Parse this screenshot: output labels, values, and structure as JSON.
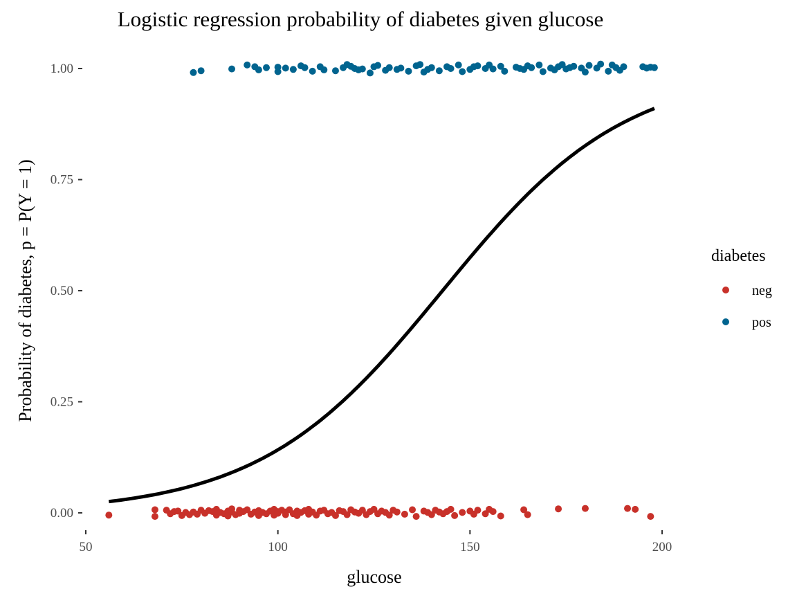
{
  "chart_data": {
    "type": "scatter",
    "title": "Logistic regression probability of diabetes given glucose",
    "xlabel": "glucose",
    "ylabel": "Probability of diabetes, p = P(Y = 1)",
    "xlim": [
      50,
      200
    ],
    "ylim": [
      0,
      1
    ],
    "x_ticks": [
      "50",
      "100",
      "150",
      "200"
    ],
    "x_tick_values": [
      50,
      100,
      150,
      200
    ],
    "y_ticks": [
      "0.00",
      "0.25",
      "0.50",
      "0.75",
      "1.00"
    ],
    "y_tick_values": [
      0,
      0.25,
      0.5,
      0.75,
      1
    ],
    "grid": false,
    "legend": {
      "title": "diabetes",
      "position": "right",
      "entries": [
        "neg",
        "pos"
      ]
    },
    "colors": {
      "neg": "#c8312a",
      "pos": "#01648f",
      "curve": "#000000"
    },
    "curve": {
      "type": "logistic",
      "intercept": -6.0,
      "slope": 0.042,
      "x_range": [
        56,
        198
      ]
    },
    "series": [
      {
        "name": "neg",
        "x": [
          56,
          68,
          68,
          71,
          72,
          73,
          74,
          75,
          76,
          77,
          78,
          79,
          80,
          81,
          82,
          83,
          84,
          84,
          85,
          86,
          87,
          87,
          88,
          88,
          89,
          90,
          90,
          91,
          92,
          93,
          94,
          95,
          95,
          96,
          97,
          98,
          99,
          99,
          100,
          100,
          101,
          102,
          102,
          103,
          104,
          105,
          105,
          106,
          107,
          108,
          108,
          109,
          110,
          111,
          112,
          113,
          114,
          115,
          116,
          117,
          118,
          119,
          120,
          121,
          122,
          123,
          124,
          125,
          126,
          127,
          128,
          129,
          130,
          131,
          133,
          135,
          136,
          138,
          139,
          140,
          141,
          142,
          143,
          144,
          145,
          146,
          148,
          150,
          151,
          152,
          154,
          155,
          156,
          158,
          164,
          165,
          173,
          180,
          191,
          193,
          197
        ],
        "y": [
          -0.005,
          0.007,
          -0.008,
          0.006,
          -0.002,
          0.003,
          0.004,
          -0.006,
          0.001,
          -0.004,
          0.002,
          -0.003,
          0.006,
          -0.001,
          0.005,
          0.003,
          -0.005,
          0.008,
          0.001,
          -0.002,
          0.004,
          -0.007,
          0.009,
          0.002,
          -0.004,
          0.006,
          -0.001,
          0.003,
          0.007,
          -0.003,
          0.002,
          -0.006,
          0.005,
          0.001,
          -0.002,
          0.004,
          0.008,
          -0.005,
          0.003,
          -0.001,
          0.006,
          -0.004,
          0.002,
          0.007,
          -0.002,
          0.004,
          -0.006,
          0.001,
          0.005,
          -0.003,
          0.008,
          0.002,
          -0.005,
          0.004,
          0.006,
          -0.002,
          0.001,
          -0.006,
          0.005,
          0.003,
          -0.004,
          0.007,
          0.002,
          -0.001,
          0.006,
          -0.004,
          0.003,
          0.008,
          -0.002,
          0.004,
          0.001,
          -0.005,
          0.006,
          0.002,
          -0.003,
          0.007,
          -0.008,
          0.004,
          0.001,
          -0.004,
          0.006,
          0.002,
          -0.002,
          0.003,
          0.008,
          -0.006,
          0.001,
          0.004,
          -0.003,
          0.006,
          -0.002,
          0.008,
          0.003,
          -0.007,
          0.007,
          -0.004,
          0.009,
          0.01,
          0.01,
          0.008,
          -0.008
        ]
      },
      {
        "name": "pos",
        "x": [
          78,
          80,
          88,
          92,
          94,
          95,
          97,
          100,
          100,
          102,
          104,
          106,
          107,
          109,
          111,
          112,
          115,
          117,
          118,
          119,
          120,
          121,
          122,
          124,
          125,
          126,
          128,
          129,
          131,
          132,
          134,
          136,
          137,
          138,
          139,
          140,
          142,
          144,
          145,
          147,
          148,
          150,
          151,
          152,
          154,
          155,
          156,
          158,
          159,
          162,
          163,
          164,
          165,
          166,
          168,
          169,
          171,
          172,
          173,
          174,
          175,
          176,
          177,
          179,
          180,
          181,
          183,
          184,
          186,
          187,
          188,
          189,
          190,
          195,
          196,
          197,
          198
        ],
        "y": [
          0.991,
          0.995,
          0.999,
          1.008,
          1.004,
          0.997,
          1.002,
          0.993,
          1.003,
          1.001,
          0.998,
          1.006,
          1.002,
          0.994,
          1.004,
          0.997,
          0.995,
          1.002,
          1.009,
          1.005,
          1.0,
          0.997,
          0.999,
          0.99,
          1.004,
          1.007,
          0.996,
          1.002,
          0.998,
          1.001,
          0.994,
          1.006,
          1.009,
          0.992,
          0.998,
          1.002,
          0.995,
          1.004,
          1.0,
          1.008,
          0.993,
          0.998,
          1.004,
          1.006,
          1.0,
          1.008,
          0.999,
          1.005,
          0.994,
          1.003,
          1.0,
          0.998,
          1.006,
          1.002,
          1.008,
          0.993,
          1.001,
          0.997,
          1.004,
          1.009,
          0.999,
          1.002,
          1.005,
          1.001,
          0.992,
          1.007,
          1.001,
          1.01,
          0.994,
          1.008,
          1.002,
          0.996,
          1.004,
          1.004,
          1.001,
          1.003,
          1.002
        ]
      }
    ]
  }
}
